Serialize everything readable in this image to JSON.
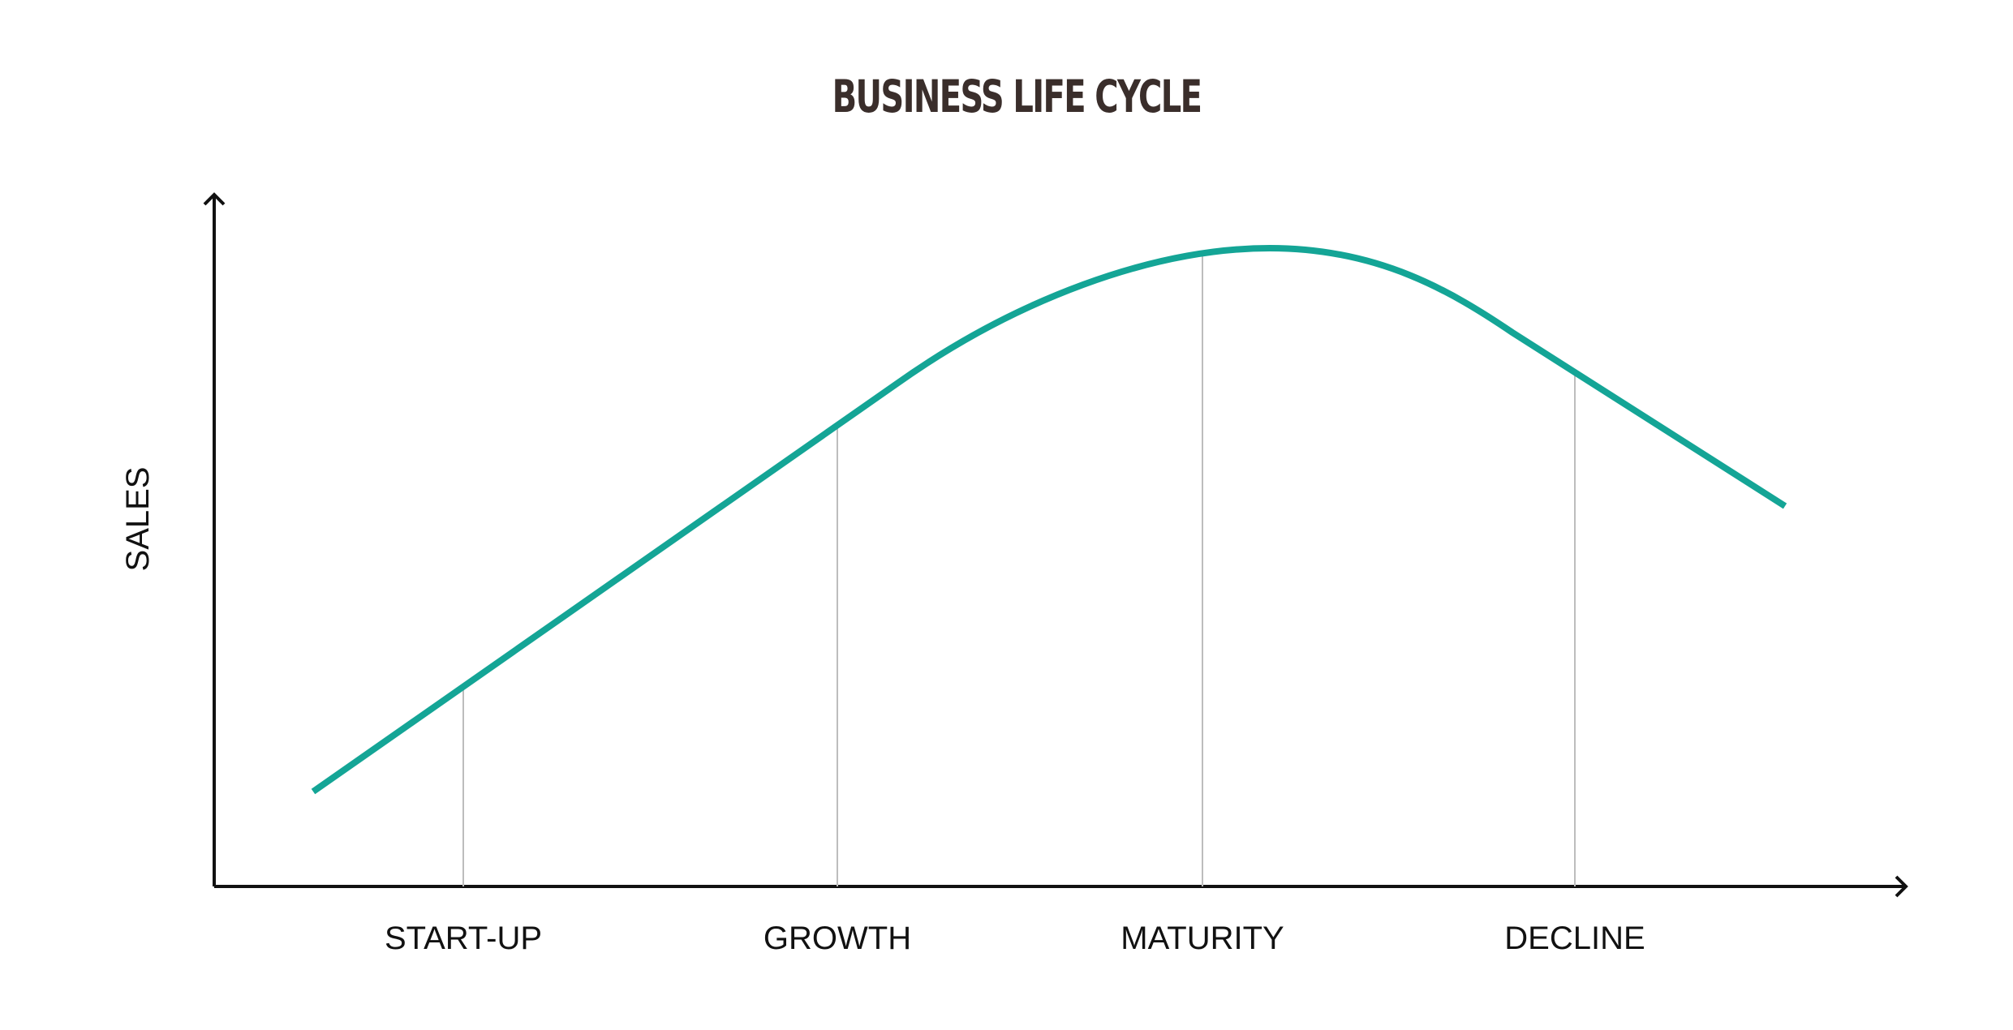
{
  "title": "BUSINESS LIFE CYCLE",
  "y_axis_label": "SALES",
  "stages": [
    "START-UP",
    "GROWTH",
    "MATURITY",
    "DECLINE"
  ]
}
